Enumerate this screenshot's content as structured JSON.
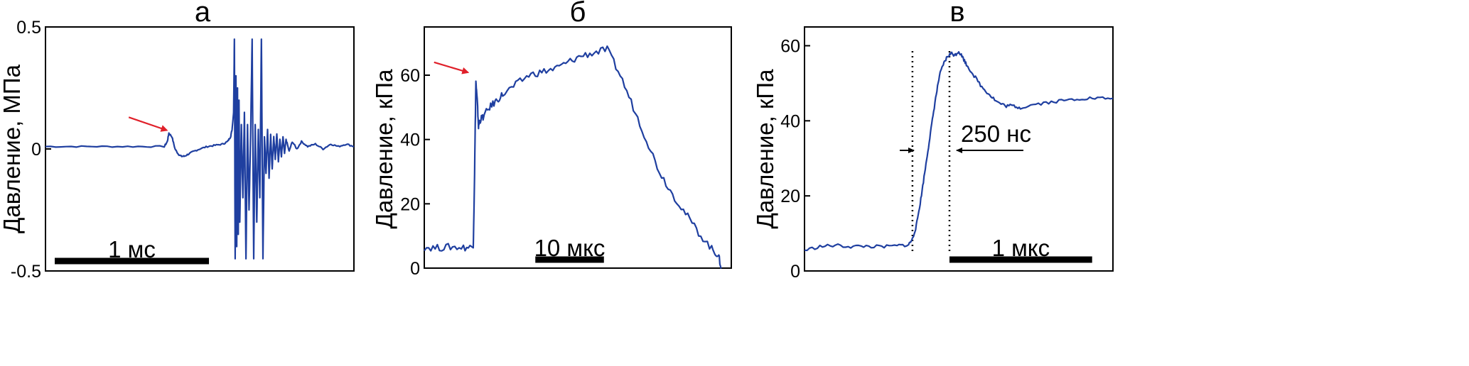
{
  "colors": {
    "trace": "#1f3fa0",
    "arrow": "#e0202a",
    "axis": "#000000",
    "scalebar": "#000000"
  },
  "chart_data": [
    {
      "type": "line",
      "panel_label": "а",
      "ylabel": "Давление, МПа",
      "xlabel": "",
      "ylim": [
        -0.5,
        0.5
      ],
      "y_ticks": [
        -0.5,
        0,
        0.5
      ],
      "y_tick_labels": [
        "-0.5",
        "0",
        "0.5"
      ],
      "xlim": [
        0,
        2.0
      ],
      "x_unit": "мс",
      "scale_bar": {
        "label": "1 мс",
        "length": 1.0,
        "start": 0.06
      },
      "grid": false,
      "annotations": [
        {
          "type": "arrow",
          "color": "#e0202a",
          "points_to": [
            0.8,
            0.065
          ],
          "from": [
            0.54,
            0.13
          ]
        }
      ],
      "series": [
        {
          "x": [
            0,
            0.2,
            0.4,
            0.6,
            0.77,
            0.79,
            0.8,
            0.82,
            0.84,
            0.86,
            0.88,
            0.9,
            0.93,
            0.96,
            1.0,
            1.05,
            1.1,
            1.15,
            1.18,
            1.2,
            1.21,
            1.22,
            1.225,
            1.23,
            1.235,
            1.24,
            1.245,
            1.25,
            1.255,
            1.26,
            1.27,
            1.28,
            1.29,
            1.3,
            1.31,
            1.32,
            1.33,
            1.34,
            1.35,
            1.36,
            1.37,
            1.38,
            1.39,
            1.4,
            1.41,
            1.42,
            1.43,
            1.44,
            1.45,
            1.46,
            1.47,
            1.48,
            1.49,
            1.5,
            1.51,
            1.52,
            1.53,
            1.54,
            1.55,
            1.56,
            1.58,
            1.6,
            1.63,
            1.66,
            1.7,
            1.75,
            1.8,
            1.85,
            1.9,
            1.95,
            2.0
          ],
          "y": [
            0.01,
            0.01,
            0.01,
            0.01,
            0.01,
            0.03,
            0.065,
            0.05,
            0.0,
            -0.02,
            -0.03,
            -0.03,
            -0.02,
            -0.01,
            0.0,
            0.01,
            0.015,
            0.02,
            0.03,
            0.05,
            0.08,
            0.15,
            0.45,
            -0.45,
            0.3,
            -0.4,
            0.25,
            -0.35,
            0.2,
            -0.3,
            0.1,
            -0.2,
            0.15,
            -0.45,
            0.1,
            -0.25,
            0.05,
            0.45,
            -0.45,
            0.1,
            -0.3,
            0.08,
            -0.2,
            0.45,
            -0.45,
            0.05,
            -0.1,
            0.08,
            -0.12,
            0.06,
            -0.08,
            0.05,
            -0.04,
            0.06,
            -0.05,
            0.04,
            -0.03,
            0.05,
            -0.02,
            0.04,
            -0.01,
            0.03,
            0.0,
            0.03,
            0.01,
            0.02,
            0.0,
            0.02,
            0.01,
            0.02,
            0.01
          ]
        }
      ]
    },
    {
      "type": "line",
      "panel_label": "б",
      "ylabel": "Давление, кПа",
      "xlabel": "",
      "ylim": [
        0,
        75
      ],
      "y_ticks": [
        0,
        20,
        40,
        60
      ],
      "y_tick_labels": [
        "0",
        "20",
        "40",
        "60"
      ],
      "xlim": [
        0,
        47
      ],
      "x_unit": "мкс",
      "scale_bar": {
        "label": "10 мкс",
        "length": 10.5,
        "start": 17
      },
      "grid": false,
      "annotations": [
        {
          "type": "arrow",
          "color": "#e0202a",
          "points_to": [
            7.0,
            60
          ],
          "from": [
            1.5,
            64
          ]
        }
      ],
      "series": [
        {
          "x": [
            0,
            2,
            4,
            6,
            7.5,
            7.7,
            7.9,
            8.1,
            8.3,
            8.5,
            9,
            10,
            11,
            12,
            14,
            16,
            18,
            20,
            22,
            24,
            26,
            28,
            30,
            32,
            34,
            36,
            38,
            40,
            42,
            44,
            45,
            45.5
          ],
          "y": [
            6.5,
            6.3,
            6.6,
            6.4,
            6.5,
            30,
            58,
            52,
            44,
            46,
            47,
            50,
            52,
            54,
            57,
            60,
            61,
            62,
            64,
            66,
            67,
            68,
            60,
            50,
            40,
            30,
            23,
            17,
            11,
            6,
            4,
            0
          ]
        }
      ]
    },
    {
      "type": "line",
      "panel_label": "в",
      "ylabel": "Давление, кПа",
      "xlabel": "",
      "ylim": [
        0,
        65
      ],
      "y_ticks": [
        0,
        20,
        40,
        60
      ],
      "y_tick_labels": [
        "0",
        "20",
        "40",
        "60"
      ],
      "xlim": [
        0,
        4.0
      ],
      "x_unit": "мкс",
      "scale_bar": {
        "label": "1 мкс",
        "length": 1.85,
        "start": 1.88
      },
      "grid": false,
      "annotations": [
        {
          "type": "text",
          "text": "250 нс"
        },
        {
          "type": "vline",
          "x": 1.4
        },
        {
          "type": "vline",
          "x": 1.88
        }
      ],
      "series": [
        {
          "x": [
            0,
            0.2,
            0.4,
            0.6,
            0.8,
            1.0,
            1.2,
            1.35,
            1.4,
            1.45,
            1.5,
            1.55,
            1.6,
            1.65,
            1.7,
            1.75,
            1.8,
            1.85,
            1.9,
            1.95,
            2.0,
            2.05,
            2.1,
            2.2,
            2.3,
            2.4,
            2.5,
            2.6,
            2.7,
            2.8,
            3.0,
            3.2,
            3.4,
            3.6,
            3.8,
            4.0
          ],
          "y": [
            5.5,
            6.5,
            6.8,
            6.5,
            6.6,
            6.4,
            6.7,
            7.0,
            8.5,
            12,
            18,
            25,
            32,
            39,
            46,
            52,
            55,
            57,
            58,
            57.5,
            58.5,
            57,
            55,
            52,
            49,
            47,
            45,
            44,
            44,
            43.5,
            44.5,
            45,
            45.5,
            46,
            46,
            46
          ]
        }
      ]
    }
  ]
}
